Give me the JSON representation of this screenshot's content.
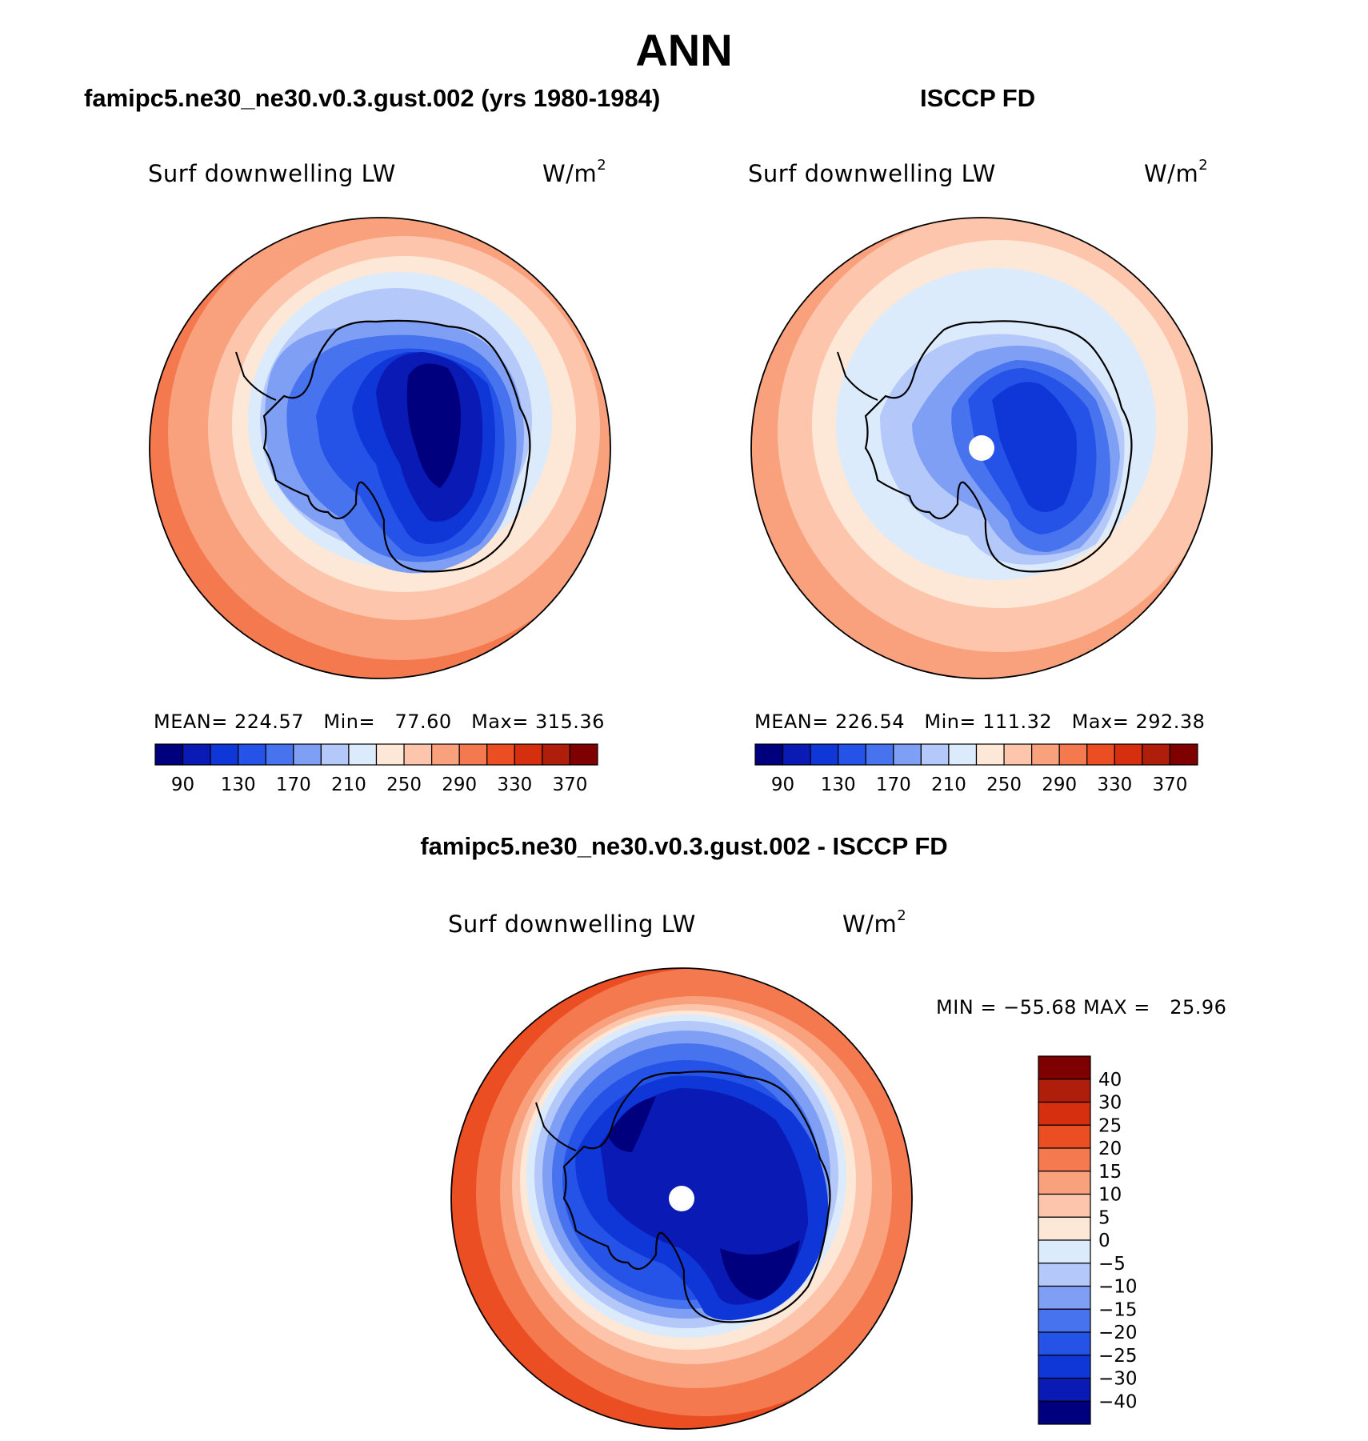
{
  "header": {
    "title": "ANN"
  },
  "panels": [
    {
      "id": "model",
      "title": "famipc5.ne30_ne30.v0.3.gust.002 (yrs 1980-1984)",
      "variable": "Surf downwelling LW",
      "units": "W/m",
      "units_exp": "2",
      "stats": {
        "mean_label": "MEAN=",
        "mean": "224.57",
        "min_label": "Min=",
        "min": "77.60",
        "max_label": "Max=",
        "max": "315.36"
      }
    },
    {
      "id": "obs",
      "title": "ISCCP FD",
      "variable": "Surf downwelling LW",
      "units": "W/m",
      "units_exp": "2",
      "stats": {
        "mean_label": "MEAN=",
        "mean": "226.54",
        "min_label": "Min=",
        "min": "111.32",
        "max_label": "Max=",
        "max": "292.38"
      }
    },
    {
      "id": "diff",
      "title": "famipc5.ne30_ne30.v0.3.gust.002 - ISCCP FD",
      "variable": "Surf downwelling LW",
      "units": "W/m",
      "units_exp": "2",
      "minmax": "MIN = −55.68 MAX =   25.96"
    }
  ],
  "colorbar_abs": {
    "colors": [
      "#00007f",
      "#0a1ab4",
      "#0f37d8",
      "#2553e8",
      "#4873ef",
      "#7f9ff5",
      "#b4c8f9",
      "#dcebfb",
      "#fde7d7",
      "#fdc6ac",
      "#f9a07c",
      "#f4794f",
      "#ec4e24",
      "#d52f10",
      "#ae1e0b",
      "#7f0000"
    ],
    "labels": [
      "90",
      "130",
      "170",
      "210",
      "250",
      "290",
      "330",
      "370"
    ]
  },
  "colorbar_diff": {
    "colors": [
      "#7f0000",
      "#ae1e0b",
      "#d52f10",
      "#ec4e24",
      "#f4794f",
      "#f9a07c",
      "#fdc6ac",
      "#fde7d7",
      "#dcebfb",
      "#b4c8f9",
      "#7f9ff5",
      "#4873ef",
      "#2553e8",
      "#0f37d8",
      "#0a1ab4",
      "#00007f"
    ],
    "labels": [
      "40",
      "30",
      "25",
      "20",
      "15",
      "10",
      "5",
      "0",
      "−5",
      "−10",
      "−15",
      "−20",
      "−25",
      "−30",
      "−40"
    ]
  }
}
